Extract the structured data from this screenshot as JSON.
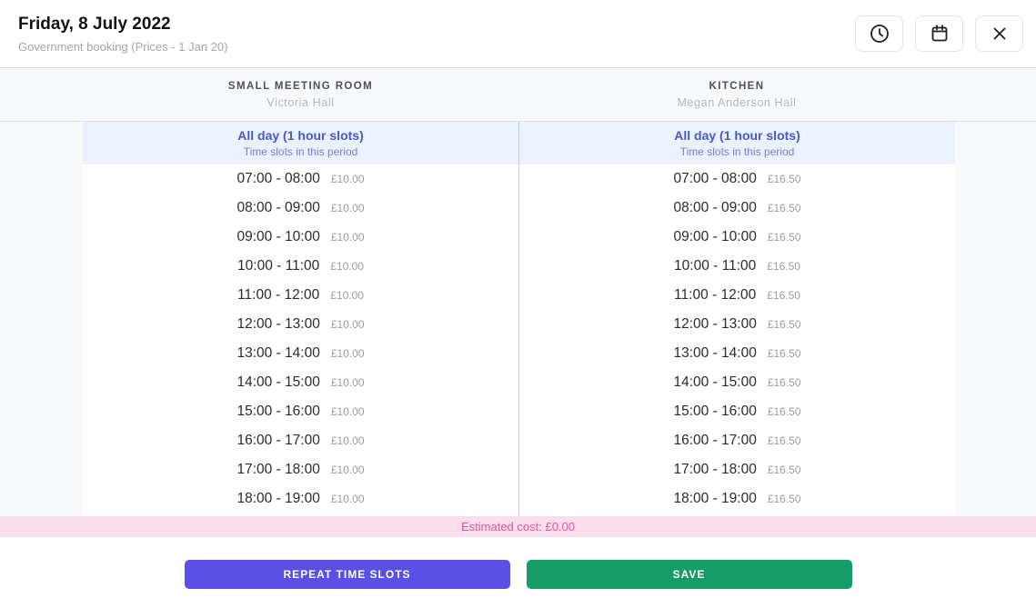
{
  "header": {
    "title": "Friday, 8 July 2022",
    "subtitle": "Government booking (Prices - 1 Jan 20)",
    "actions": [
      {
        "icon": "clock-icon"
      },
      {
        "icon": "calendar-icon"
      },
      {
        "icon": "close-icon"
      }
    ]
  },
  "columns": [
    {
      "room": "SMALL MEETING ROOM",
      "venue": "Victoria Hall",
      "period": {
        "title": "All day (1 hour slots)",
        "subtitle": "Time slots in this period"
      },
      "slots": [
        {
          "time": "07:00 - 08:00",
          "price": "£10.00"
        },
        {
          "time": "08:00 - 09:00",
          "price": "£10.00"
        },
        {
          "time": "09:00 - 10:00",
          "price": "£10.00"
        },
        {
          "time": "10:00 - 11:00",
          "price": "£10.00"
        },
        {
          "time": "11:00 - 12:00",
          "price": "£10.00"
        },
        {
          "time": "12:00 - 13:00",
          "price": "£10.00"
        },
        {
          "time": "13:00 - 14:00",
          "price": "£10.00"
        },
        {
          "time": "14:00 - 15:00",
          "price": "£10.00"
        },
        {
          "time": "15:00 - 16:00",
          "price": "£10.00"
        },
        {
          "time": "16:00 - 17:00",
          "price": "£10.00"
        },
        {
          "time": "17:00 - 18:00",
          "price": "£10.00"
        },
        {
          "time": "18:00 - 19:00",
          "price": "£10.00"
        }
      ]
    },
    {
      "room": "KITCHEN",
      "venue": "Megan Anderson Hall",
      "period": {
        "title": "All day (1 hour slots)",
        "subtitle": "Time slots in this period"
      },
      "slots": [
        {
          "time": "07:00 - 08:00",
          "price": "£16.50"
        },
        {
          "time": "08:00 - 09:00",
          "price": "£16.50"
        },
        {
          "time": "09:00 - 10:00",
          "price": "£16.50"
        },
        {
          "time": "10:00 - 11:00",
          "price": "£16.50"
        },
        {
          "time": "11:00 - 12:00",
          "price": "£16.50"
        },
        {
          "time": "12:00 - 13:00",
          "price": "£16.50"
        },
        {
          "time": "13:00 - 14:00",
          "price": "£16.50"
        },
        {
          "time": "14:00 - 15:00",
          "price": "£16.50"
        },
        {
          "time": "15:00 - 16:00",
          "price": "£16.50"
        },
        {
          "time": "16:00 - 17:00",
          "price": "£16.50"
        },
        {
          "time": "17:00 - 18:00",
          "price": "£16.50"
        },
        {
          "time": "18:00 - 19:00",
          "price": "£16.50"
        }
      ]
    }
  ],
  "footer": {
    "estimated_cost": "Estimated cost: £0.00",
    "repeat_label": "REPEAT TIME SLOTS",
    "save_label": "SAVE"
  },
  "colors": {
    "accent_purple": "#5a50e8",
    "accent_green": "#179c67",
    "cost_bar_bg": "#fbdeeb",
    "cost_bar_text": "#e0569e",
    "period_band_bg": "#ecf2fd",
    "period_title_blue": "#4559cb",
    "gutter_gray": "#f8f9fb"
  }
}
